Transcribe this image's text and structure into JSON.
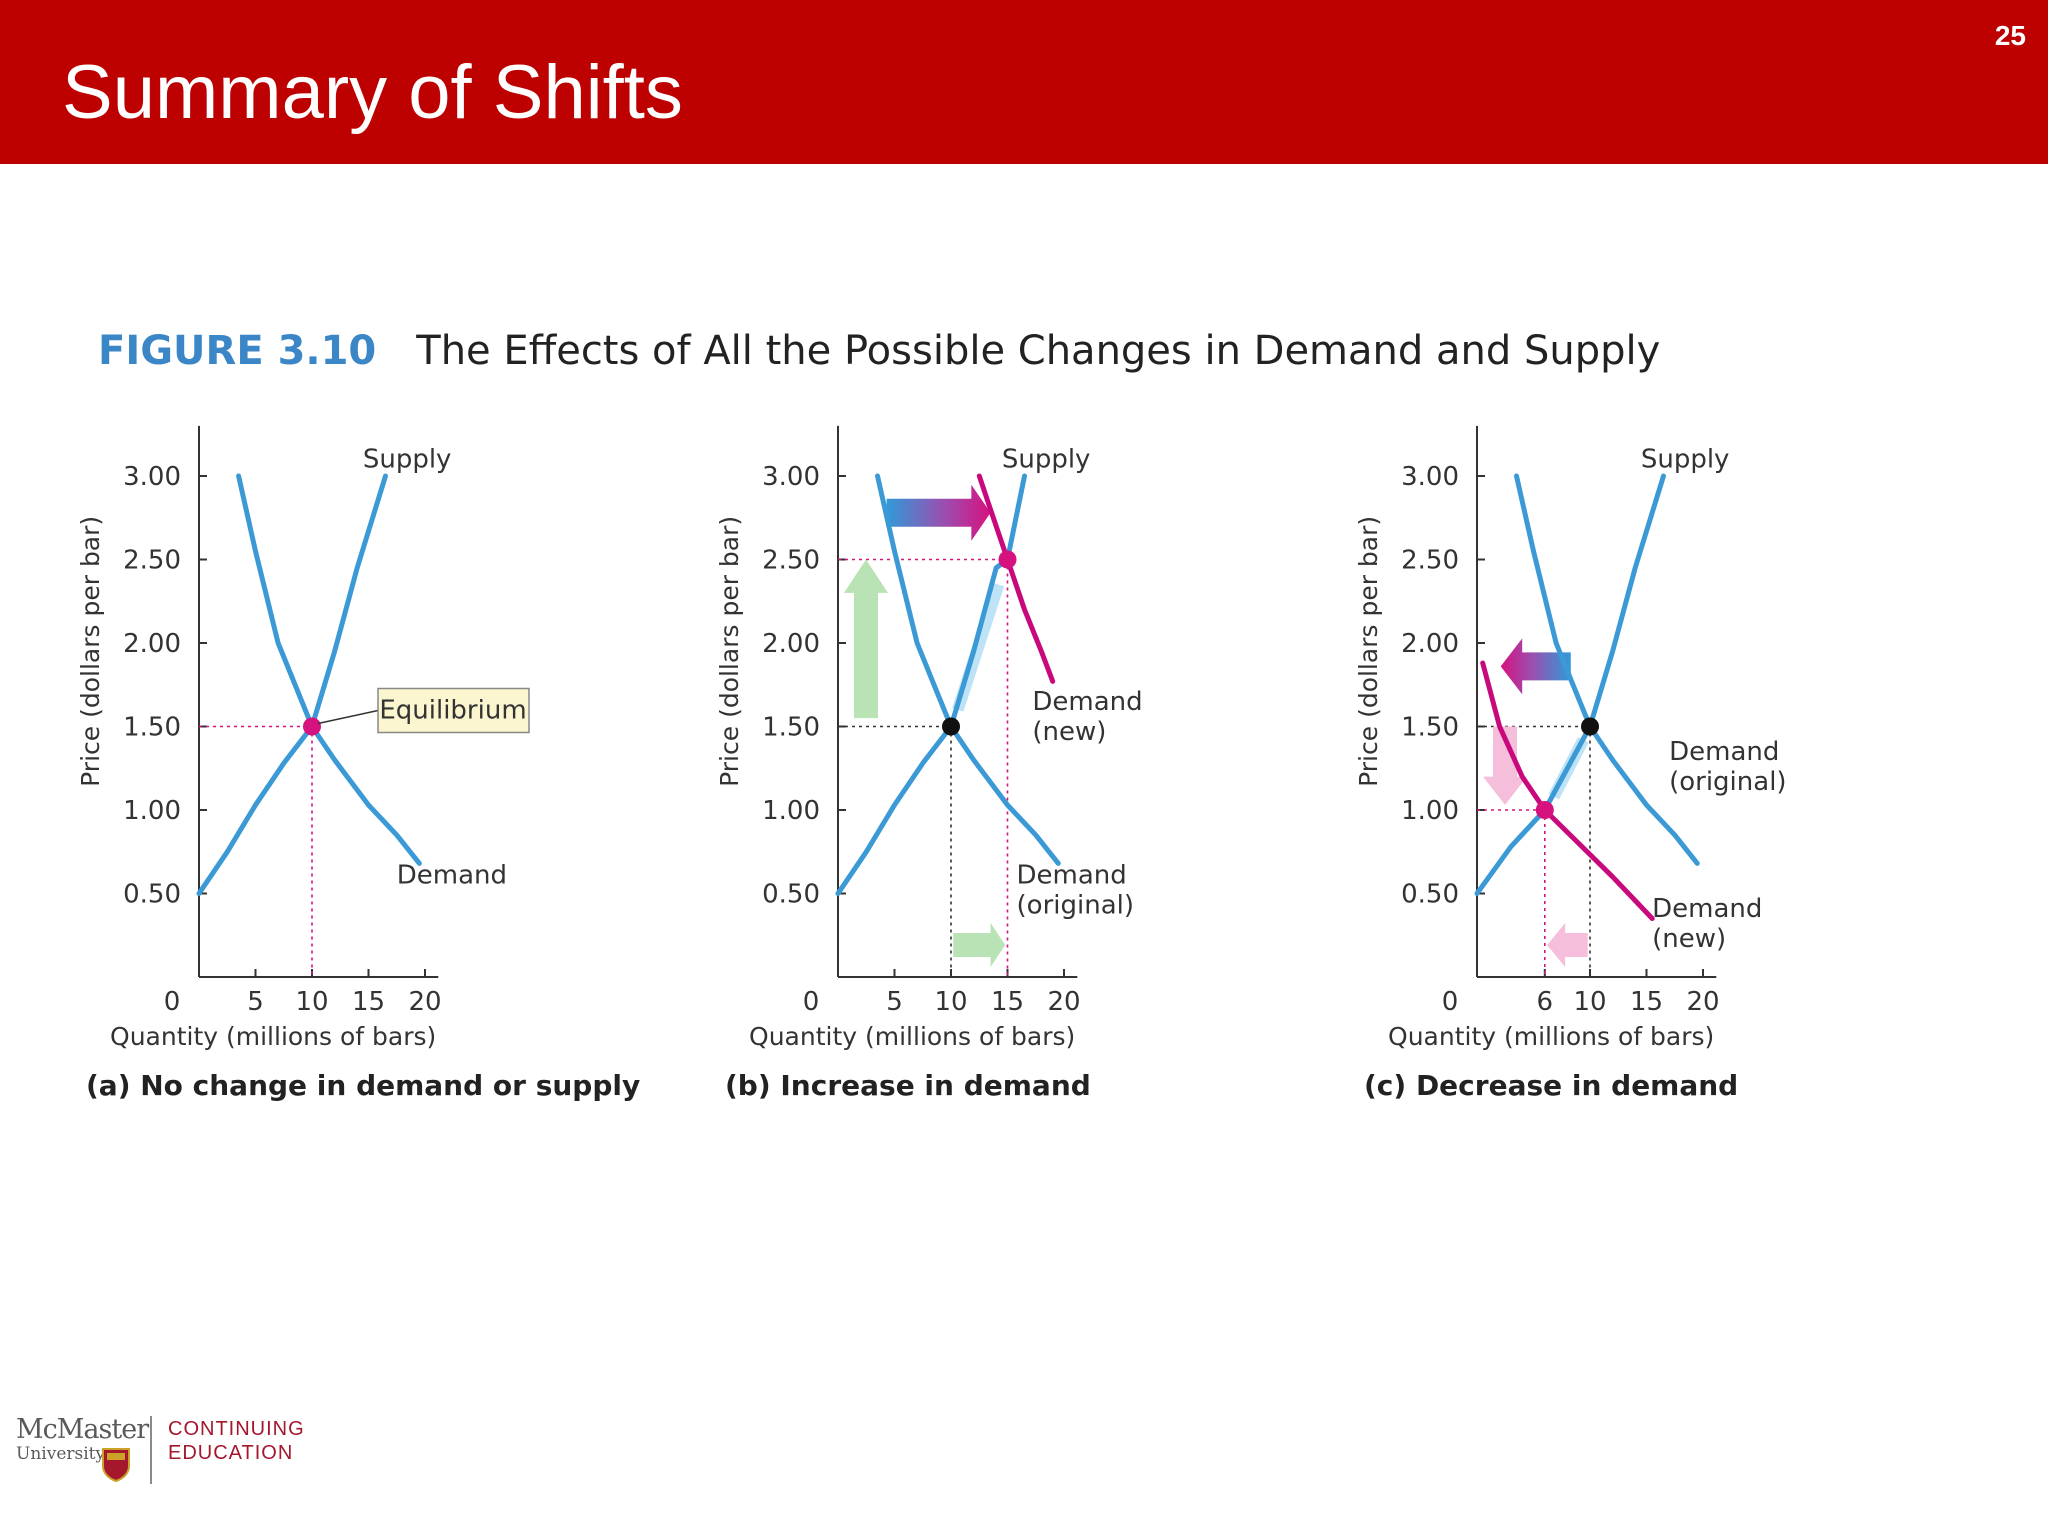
{
  "slide": {
    "title": "Summary of Shifts",
    "number": "25"
  },
  "figure": {
    "label": "FIGURE 3.10",
    "title": "The Effects of All the Possible Changes in Demand and Supply"
  },
  "logo": {
    "university": "McMaster",
    "university_sub": "University",
    "unit_line1": "CONTINUING",
    "unit_line2": "EDUCATION"
  },
  "colors": {
    "header": "#bd0000",
    "figure_label": "#3b86c6",
    "curve": "#3b9ad6",
    "new_curve": "#c8097c",
    "equilibrium": "#d6127f",
    "highlight_text": "#d6127f",
    "green_arrow": "#b9e3b4",
    "pink_arrow": "#f5bfdc"
  },
  "chart_data": [
    {
      "type": "line",
      "panel_caption": "(a) No change in demand or supply",
      "xlabel": "Quantity (millions of bars)",
      "ylabel": "Price (dollars per bar)",
      "xlim": [
        0,
        21
      ],
      "ylim": [
        0,
        3.3
      ],
      "x_ticks": [
        "0",
        "5",
        "10",
        "15",
        "20"
      ],
      "y_ticks": [
        "0.50",
        "1.00",
        "1.50",
        "2.00",
        "2.50",
        "3.00"
      ],
      "highlight_x_tick": "10",
      "highlight_y_tick": "1.50",
      "series": [
        {
          "name": "Supply",
          "points": [
            [
              0,
              0.5
            ],
            [
              2.5,
              0.75
            ],
            [
              5,
              1.03
            ],
            [
              7.5,
              1.28
            ],
            [
              10,
              1.5
            ],
            [
              12,
              1.95
            ],
            [
              14,
              2.45
            ],
            [
              16.5,
              3.0
            ]
          ]
        },
        {
          "name": "Demand",
          "points": [
            [
              3.5,
              3.0
            ],
            [
              5,
              2.55
            ],
            [
              7,
              2.0
            ],
            [
              8.5,
              1.75
            ],
            [
              10,
              1.5
            ],
            [
              12,
              1.3
            ],
            [
              15,
              1.03
            ],
            [
              17.5,
              0.85
            ],
            [
              19.5,
              0.68
            ]
          ]
        }
      ],
      "equilibria": [
        {
          "x": 10,
          "y": 1.5,
          "label": "Equilibrium"
        }
      ]
    },
    {
      "type": "line",
      "panel_caption": "(b) Increase in demand",
      "xlabel": "Quantity (millions of bars)",
      "ylabel": "Price (dollars per bar)",
      "xlim": [
        0,
        21
      ],
      "ylim": [
        0,
        3.3
      ],
      "x_ticks": [
        "0",
        "5",
        "10",
        "15",
        "20"
      ],
      "y_ticks": [
        "0.50",
        "1.00",
        "1.50",
        "2.00",
        "2.50",
        "3.00"
      ],
      "highlight_x_tick": "15",
      "highlight_y_tick": "2.50",
      "series": [
        {
          "name": "Supply",
          "points": [
            [
              0,
              0.5
            ],
            [
              2.5,
              0.75
            ],
            [
              5,
              1.03
            ],
            [
              7.5,
              1.28
            ],
            [
              10,
              1.5
            ],
            [
              12,
              1.95
            ],
            [
              14,
              2.45
            ],
            [
              15,
              2.5
            ],
            [
              16.5,
              3.0
            ]
          ]
        },
        {
          "name": "Demand (original)",
          "points": [
            [
              3.5,
              3.0
            ],
            [
              5,
              2.55
            ],
            [
              7,
              2.0
            ],
            [
              8.5,
              1.75
            ],
            [
              10,
              1.5
            ],
            [
              12,
              1.3
            ],
            [
              15,
              1.03
            ],
            [
              17.5,
              0.85
            ],
            [
              19.5,
              0.68
            ]
          ]
        },
        {
          "name": "Demand (new)",
          "points": [
            [
              12.5,
              3.0
            ],
            [
              13.5,
              2.8
            ],
            [
              15,
              2.5
            ],
            [
              16.5,
              2.2
            ],
            [
              18,
              1.95
            ],
            [
              19,
              1.77
            ]
          ]
        }
      ],
      "equilibria": [
        {
          "x": 10,
          "y": 1.5,
          "label": ""
        },
        {
          "x": 15,
          "y": 2.5,
          "label": ""
        }
      ]
    },
    {
      "type": "line",
      "panel_caption": "(c) Decrease in demand",
      "xlabel": "Quantity (millions of bars)",
      "ylabel": "Price (dollars per bar)",
      "xlim": [
        0,
        21
      ],
      "ylim": [
        0,
        3.3
      ],
      "x_ticks": [
        "0",
        "6",
        "10",
        "15",
        "20"
      ],
      "y_ticks": [
        "0.50",
        "1.00",
        "1.50",
        "2.00",
        "2.50",
        "3.00"
      ],
      "highlight_x_tick": "6",
      "highlight_y_tick": "1.00",
      "series": [
        {
          "name": "Supply",
          "points": [
            [
              0,
              0.5
            ],
            [
              3,
              0.78
            ],
            [
              6,
              1.0
            ],
            [
              8,
              1.25
            ],
            [
              10,
              1.5
            ],
            [
              12,
              1.95
            ],
            [
              14,
              2.45
            ],
            [
              16.5,
              3.0
            ]
          ]
        },
        {
          "name": "Demand (original)",
          "points": [
            [
              3.5,
              3.0
            ],
            [
              5,
              2.55
            ],
            [
              7,
              2.0
            ],
            [
              8.5,
              1.75
            ],
            [
              10,
              1.5
            ],
            [
              12,
              1.3
            ],
            [
              15,
              1.03
            ],
            [
              17.5,
              0.85
            ],
            [
              19.5,
              0.68
            ]
          ]
        },
        {
          "name": "Demand (new)",
          "points": [
            [
              0.5,
              1.88
            ],
            [
              2,
              1.5
            ],
            [
              4,
              1.2
            ],
            [
              6,
              1.0
            ],
            [
              9,
              0.8
            ],
            [
              12,
              0.6
            ],
            [
              15.5,
              0.35
            ]
          ]
        }
      ],
      "equilibria": [
        {
          "x": 10,
          "y": 1.5,
          "label": ""
        },
        {
          "x": 6,
          "y": 1.0,
          "label": ""
        }
      ]
    }
  ]
}
